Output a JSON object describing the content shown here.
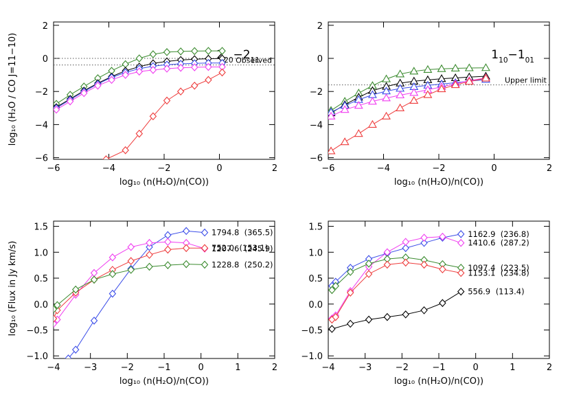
{
  "figure": {
    "colors": {
      "black": "#000000",
      "green": "#3a8a2e",
      "red": "#ee3b3b",
      "blue": "#3b4de8",
      "magenta": "#f03cf0",
      "blue_light": "#8080ff",
      "magenta_light": "#ff80ff"
    },
    "ylabel_top": "log₁₀ (H₂O / CO J=11−10)",
    "ylabel_bottom": "log₁₀ (Flux in Jy km/s)",
    "xlabel": "log₁₀ (n(H₂O)/n(CO))"
  },
  "chart_data": [
    {
      "type": "line",
      "panel": "top-left",
      "title": "2₂₀−2₁₁",
      "xlabel": "log₁₀ (n(H₂O)/n(CO))",
      "ylabel": "log₁₀ (H₂O / CO J=11−10)",
      "xlim": [
        -6,
        2
      ],
      "ylim": [
        -6.1,
        2.2
      ],
      "xticks": [
        -6,
        -4,
        -2,
        0,
        2
      ],
      "yticks": [
        -6,
        -4,
        -2,
        0,
        2
      ],
      "marker": "diamond",
      "reference_lines": [
        {
          "y": 0.0,
          "label": ""
        },
        {
          "y": -0.4,
          "label": "Observed"
        }
      ],
      "series": [
        {
          "color": "green",
          "x": [
            -5.9,
            -5.4,
            -4.9,
            -4.4,
            -3.9,
            -3.4,
            -2.9,
            -2.4,
            -1.9,
            -1.4,
            -0.9,
            -0.4,
            0.1
          ],
          "y": [
            -2.75,
            -2.2,
            -1.7,
            -1.2,
            -0.75,
            -0.35,
            0.0,
            0.25,
            0.38,
            0.42,
            0.44,
            0.45,
            0.45
          ]
        },
        {
          "color": "black",
          "x": [
            -5.9,
            -5.4,
            -4.9,
            -4.4,
            -3.9,
            -3.4,
            -2.9,
            -2.4,
            -1.9,
            -1.4,
            -0.9,
            -0.4,
            0.1
          ],
          "y": [
            -2.95,
            -2.45,
            -1.95,
            -1.5,
            -1.1,
            -0.75,
            -0.5,
            -0.3,
            -0.18,
            -0.1,
            -0.05,
            -0.02,
            -0.01
          ]
        },
        {
          "color": "blue",
          "x": [
            -5.9,
            -5.4,
            -4.9,
            -4.4,
            -3.9,
            -3.4,
            -2.9,
            -2.4,
            -1.9,
            -1.4,
            -0.9,
            -0.4,
            0.1
          ],
          "y": [
            -3.0,
            -2.5,
            -2.0,
            -1.55,
            -1.15,
            -0.85,
            -0.62,
            -0.47,
            -0.38,
            -0.33,
            -0.3,
            -0.28,
            -0.28
          ]
        },
        {
          "color": "magenta",
          "x": [
            -5.9,
            -5.4,
            -4.9,
            -4.4,
            -3.9,
            -3.4,
            -2.9,
            -2.4,
            -1.9,
            -1.4,
            -0.9,
            -0.4,
            0.1
          ],
          "y": [
            -3.1,
            -2.6,
            -2.1,
            -1.65,
            -1.3,
            -1.0,
            -0.8,
            -0.7,
            -0.62,
            -0.57,
            -0.54,
            -0.52,
            -0.52
          ]
        },
        {
          "color": "red",
          "x": [
            -4.1,
            -3.4,
            -2.9,
            -2.4,
            -1.9,
            -1.4,
            -0.9,
            -0.4,
            0.1
          ],
          "y": [
            -6.1,
            -5.55,
            -4.55,
            -3.5,
            -2.55,
            -2.0,
            -1.65,
            -1.3,
            -0.85
          ]
        }
      ]
    },
    {
      "type": "line",
      "panel": "top-right",
      "title": "1₁₀−1₀₁",
      "xlabel": "log₁₀ (n(H₂O)/n(CO))",
      "ylabel": "",
      "xlim": [
        -6,
        2
      ],
      "ylim": [
        -6.1,
        2.2
      ],
      "xticks": [
        -6,
        -4,
        -2,
        0,
        2
      ],
      "yticks": [
        -6,
        -4,
        -2,
        0,
        2
      ],
      "marker": "triangle",
      "reference_lines": [
        {
          "y": -1.6,
          "label": "Upper limit"
        }
      ],
      "series": [
        {
          "color": "green",
          "x": [
            -5.9,
            -5.4,
            -4.9,
            -4.4,
            -3.9,
            -3.4,
            -2.9,
            -2.4,
            -1.9,
            -1.4,
            -0.9,
            -0.3
          ],
          "y": [
            -3.15,
            -2.6,
            -2.1,
            -1.65,
            -1.25,
            -0.95,
            -0.78,
            -0.68,
            -0.63,
            -0.6,
            -0.58,
            -0.57
          ]
        },
        {
          "color": "black",
          "x": [
            -5.9,
            -5.4,
            -4.9,
            -4.4,
            -3.9,
            -3.4,
            -2.9,
            -2.4,
            -1.9,
            -1.4,
            -0.9,
            -0.3
          ],
          "y": [
            -3.3,
            -2.8,
            -2.35,
            -1.95,
            -1.7,
            -1.5,
            -1.38,
            -1.3,
            -1.23,
            -1.18,
            -1.13,
            -1.08
          ]
        },
        {
          "color": "blue",
          "x": [
            -5.9,
            -5.4,
            -4.9,
            -4.4,
            -3.9,
            -3.4,
            -2.9,
            -2.4,
            -1.9,
            -1.4,
            -0.9,
            -0.3
          ],
          "y": [
            -3.25,
            -2.85,
            -2.5,
            -2.2,
            -1.98,
            -1.82,
            -1.72,
            -1.63,
            -1.55,
            -1.47,
            -1.38,
            -1.28
          ]
        },
        {
          "color": "magenta",
          "x": [
            -5.9,
            -5.4,
            -4.9,
            -4.4,
            -3.9,
            -3.4,
            -2.9,
            -2.4,
            -1.9,
            -1.4,
            -0.9,
            -0.3
          ],
          "y": [
            -3.5,
            -3.1,
            -2.85,
            -2.6,
            -2.4,
            -2.22,
            -2.07,
            -1.9,
            -1.72,
            -1.53,
            -1.35,
            -1.18
          ]
        },
        {
          "color": "red",
          "x": [
            -5.9,
            -5.4,
            -4.9,
            -4.4,
            -3.9,
            -3.4,
            -2.9,
            -2.4,
            -1.9,
            -1.4,
            -0.9,
            -0.3
          ],
          "y": [
            -5.6,
            -5.05,
            -4.55,
            -4.0,
            -3.5,
            -3.0,
            -2.55,
            -2.2,
            -1.85,
            -1.6,
            -1.4,
            -1.2
          ]
        }
      ]
    },
    {
      "type": "line",
      "panel": "bottom-left",
      "xlabel": "log₁₀ (n(H₂O)/n(CO))",
      "ylabel": "log₁₀ (Flux in Jy km/s)",
      "xlim": [
        -4,
        2
      ],
      "ylim": [
        -1.05,
        1.6
      ],
      "xticks": [
        -4,
        -3,
        -2,
        -1,
        0,
        1,
        2
      ],
      "yticks": [
        -1.0,
        -0.5,
        0.0,
        0.5,
        1.0,
        1.5
      ],
      "marker": "diamond",
      "series": [
        {
          "color": "blue",
          "annotation": "1794.8",
          "annotation_paren": "(365.5)",
          "x": [
            -3.6,
            -3.4,
            -2.9,
            -2.4,
            -1.9,
            -1.4,
            -0.9,
            -0.4,
            0.1
          ],
          "y": [
            -1.05,
            -0.88,
            -0.32,
            0.2,
            0.68,
            1.1,
            1.33,
            1.41,
            1.38
          ]
        },
        {
          "color": "magenta",
          "annotation": "1207.6",
          "annotation_paren": "(245.9)",
          "x": [
            -4.0,
            -3.9,
            -3.4,
            -2.9,
            -2.4,
            -1.9,
            -1.4,
            -0.9,
            -0.4,
            0.1
          ],
          "y": [
            -0.38,
            -0.3,
            0.18,
            0.6,
            0.9,
            1.1,
            1.18,
            1.2,
            1.18,
            1.07
          ]
        },
        {
          "color": "red",
          "annotation": "752.0",
          "annotation_paren": "(153.1)",
          "x": [
            -4.0,
            -3.9,
            -3.4,
            -2.9,
            -2.4,
            -1.9,
            -1.4,
            -0.9,
            -0.4,
            0.1
          ],
          "y": [
            -0.28,
            -0.12,
            0.22,
            0.47,
            0.66,
            0.83,
            0.95,
            1.05,
            1.08,
            1.08
          ]
        },
        {
          "color": "green",
          "annotation": "1228.8",
          "annotation_paren": "(250.2)",
          "x": [
            -4.0,
            -3.9,
            -3.4,
            -2.9,
            -2.4,
            -1.9,
            -1.4,
            -0.9,
            -0.4,
            0.1
          ],
          "y": [
            -0.1,
            -0.02,
            0.28,
            0.47,
            0.58,
            0.66,
            0.72,
            0.75,
            0.77,
            0.76
          ]
        }
      ]
    },
    {
      "type": "line",
      "panel": "bottom-right",
      "xlabel": "log₁₀ (n(H₂O)/n(CO))",
      "ylabel": "",
      "xlim": [
        -4,
        2
      ],
      "ylim": [
        -1.05,
        1.6
      ],
      "xticks": [
        -4,
        -3,
        -2,
        -1,
        0,
        1,
        2
      ],
      "yticks": [
        -1.0,
        -0.5,
        0.0,
        0.5,
        1.0,
        1.5
      ],
      "marker": "diamond",
      "series": [
        {
          "color": "blue",
          "annotation": "1162.9",
          "annotation_paren": "(236.8)",
          "x": [
            -3.9,
            -3.8,
            -3.4,
            -2.9,
            -2.4,
            -1.9,
            -1.4,
            -0.9,
            -0.4
          ],
          "y": [
            0.35,
            0.43,
            0.7,
            0.87,
            0.98,
            1.08,
            1.18,
            1.28,
            1.35
          ]
        },
        {
          "color": "magenta",
          "annotation": "1410.6",
          "annotation_paren": "(287.2)",
          "x": [
            -3.9,
            -3.8,
            -3.4,
            -2.9,
            -2.4,
            -1.9,
            -1.4,
            -0.9,
            -0.4
          ],
          "y": [
            -0.28,
            -0.22,
            0.25,
            0.72,
            1.0,
            1.2,
            1.28,
            1.3,
            1.18
          ]
        },
        {
          "color": "green",
          "annotation": "1097.4",
          "annotation_paren": "(223.5)",
          "x": [
            -3.9,
            -3.8,
            -3.4,
            -2.9,
            -2.4,
            -1.9,
            -1.4,
            -0.9,
            -0.4
          ],
          "y": [
            0.27,
            0.35,
            0.62,
            0.78,
            0.87,
            0.9,
            0.85,
            0.77,
            0.7
          ]
        },
        {
          "color": "red",
          "annotation": "1153.1",
          "annotation_paren": "(234.8)",
          "x": [
            -3.9,
            -3.8,
            -3.4,
            -2.9,
            -2.4,
            -1.9,
            -1.4,
            -0.9,
            -0.4
          ],
          "y": [
            -0.3,
            -0.25,
            0.22,
            0.58,
            0.76,
            0.8,
            0.76,
            0.67,
            0.6
          ]
        },
        {
          "color": "black",
          "annotation": "556.9",
          "annotation_paren": "(113.4)",
          "x": [
            -3.9,
            -3.4,
            -2.9,
            -2.4,
            -1.9,
            -1.4,
            -0.9,
            -0.4
          ],
          "y": [
            -0.48,
            -0.38,
            -0.3,
            -0.25,
            -0.2,
            -0.12,
            0.02,
            0.24
          ]
        }
      ]
    }
  ]
}
